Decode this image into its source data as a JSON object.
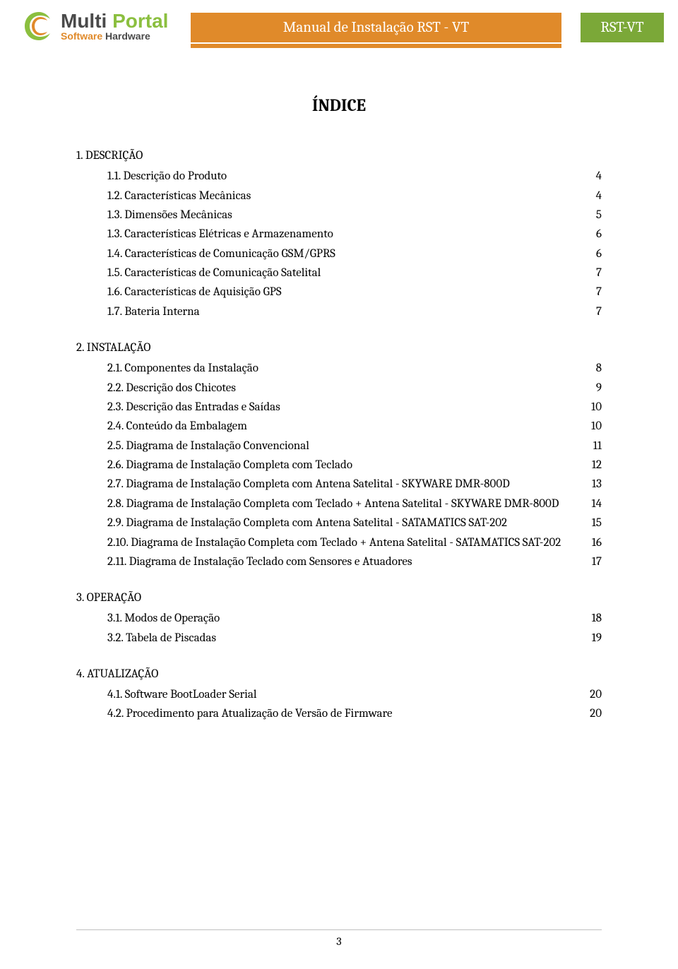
{
  "header": {
    "logo_multi": "Multi",
    "logo_portal": "Portal",
    "logo_software": "Software",
    "logo_hardware": "Hardware",
    "orange_title": "Manual de Instalação RST - VT",
    "green_badge": "RST-VT"
  },
  "title": "ÍNDICE",
  "sections": [
    {
      "head": "1. DESCRIÇÃO",
      "items": [
        {
          "label": "1.1. Descrição do Produto",
          "page": "4"
        },
        {
          "label": "1.2. Características Mecânicas",
          "page": "4"
        },
        {
          "label": "1.3. Dimensões Mecânicas",
          "page": "5"
        },
        {
          "label": "1.3. Características Elétricas e Armazenamento",
          "page": "6"
        },
        {
          "label": "1.4. Características de Comunicação GSM/GPRS",
          "page": "6"
        },
        {
          "label": "1.5. Características de Comunicação Satelital",
          "page": "7"
        },
        {
          "label": "1.6. Características de Aquisição GPS",
          "page": "7"
        },
        {
          "label": "1.7. Bateria Interna",
          "page": "7"
        }
      ]
    },
    {
      "head": "2. INSTALAÇÃO",
      "items": [
        {
          "label": "2.1. Componentes da Instalação",
          "page": "8"
        },
        {
          "label": "2.2. Descrição dos Chicotes",
          "page": "9"
        },
        {
          "label": "2.3. Descrição das Entradas e Saídas",
          "page": "10"
        },
        {
          "label": "2.4. Conteúdo da Embalagem",
          "page": "10"
        },
        {
          "label": "2.5. Diagrama de Instalação Convencional",
          "page": "11"
        },
        {
          "label": "2.6. Diagrama de Instalação Completa com Teclado",
          "page": "12"
        },
        {
          "label": "2.7. Diagrama de Instalação Completa com Antena Satelital - SKYWARE DMR-800D",
          "page": "13"
        },
        {
          "label": "2.8. Diagrama de Instalação Completa com Teclado + Antena Satelital - SKYWARE DMR-800D",
          "page": "14"
        },
        {
          "label": "2.9. Diagrama de Instalação Completa com Antena Satelital - SATAMATICS SAT-202",
          "page": "15"
        },
        {
          "label": "2.10. Diagrama de Instalação Completa com Teclado + Antena Satelital - SATAMATICS SAT-202",
          "page": "16"
        },
        {
          "label": "2.11. Diagrama de Instalação Teclado com Sensores e Atuadores",
          "page": "17"
        }
      ]
    },
    {
      "head": "3. OPERAÇÃO",
      "items": [
        {
          "label": "3.1. Modos de Operação",
          "page": "18"
        },
        {
          "label": "3.2. Tabela de Piscadas",
          "page": "19"
        }
      ]
    },
    {
      "head": "4. ATUALIZAÇÃO",
      "items": [
        {
          "label": "4.1. Software BootLoader Serial",
          "page": "20"
        },
        {
          "label": "4.2. Procedimento para Atualização de Versão de Firmware",
          "page": "20"
        }
      ]
    }
  ],
  "page_number": "3",
  "colors": {
    "orange": "#e08a2a",
    "green": "#7ba838",
    "logo_green": "#8bbf3f",
    "text": "#000000",
    "footer_line": "#bfbfbf"
  }
}
